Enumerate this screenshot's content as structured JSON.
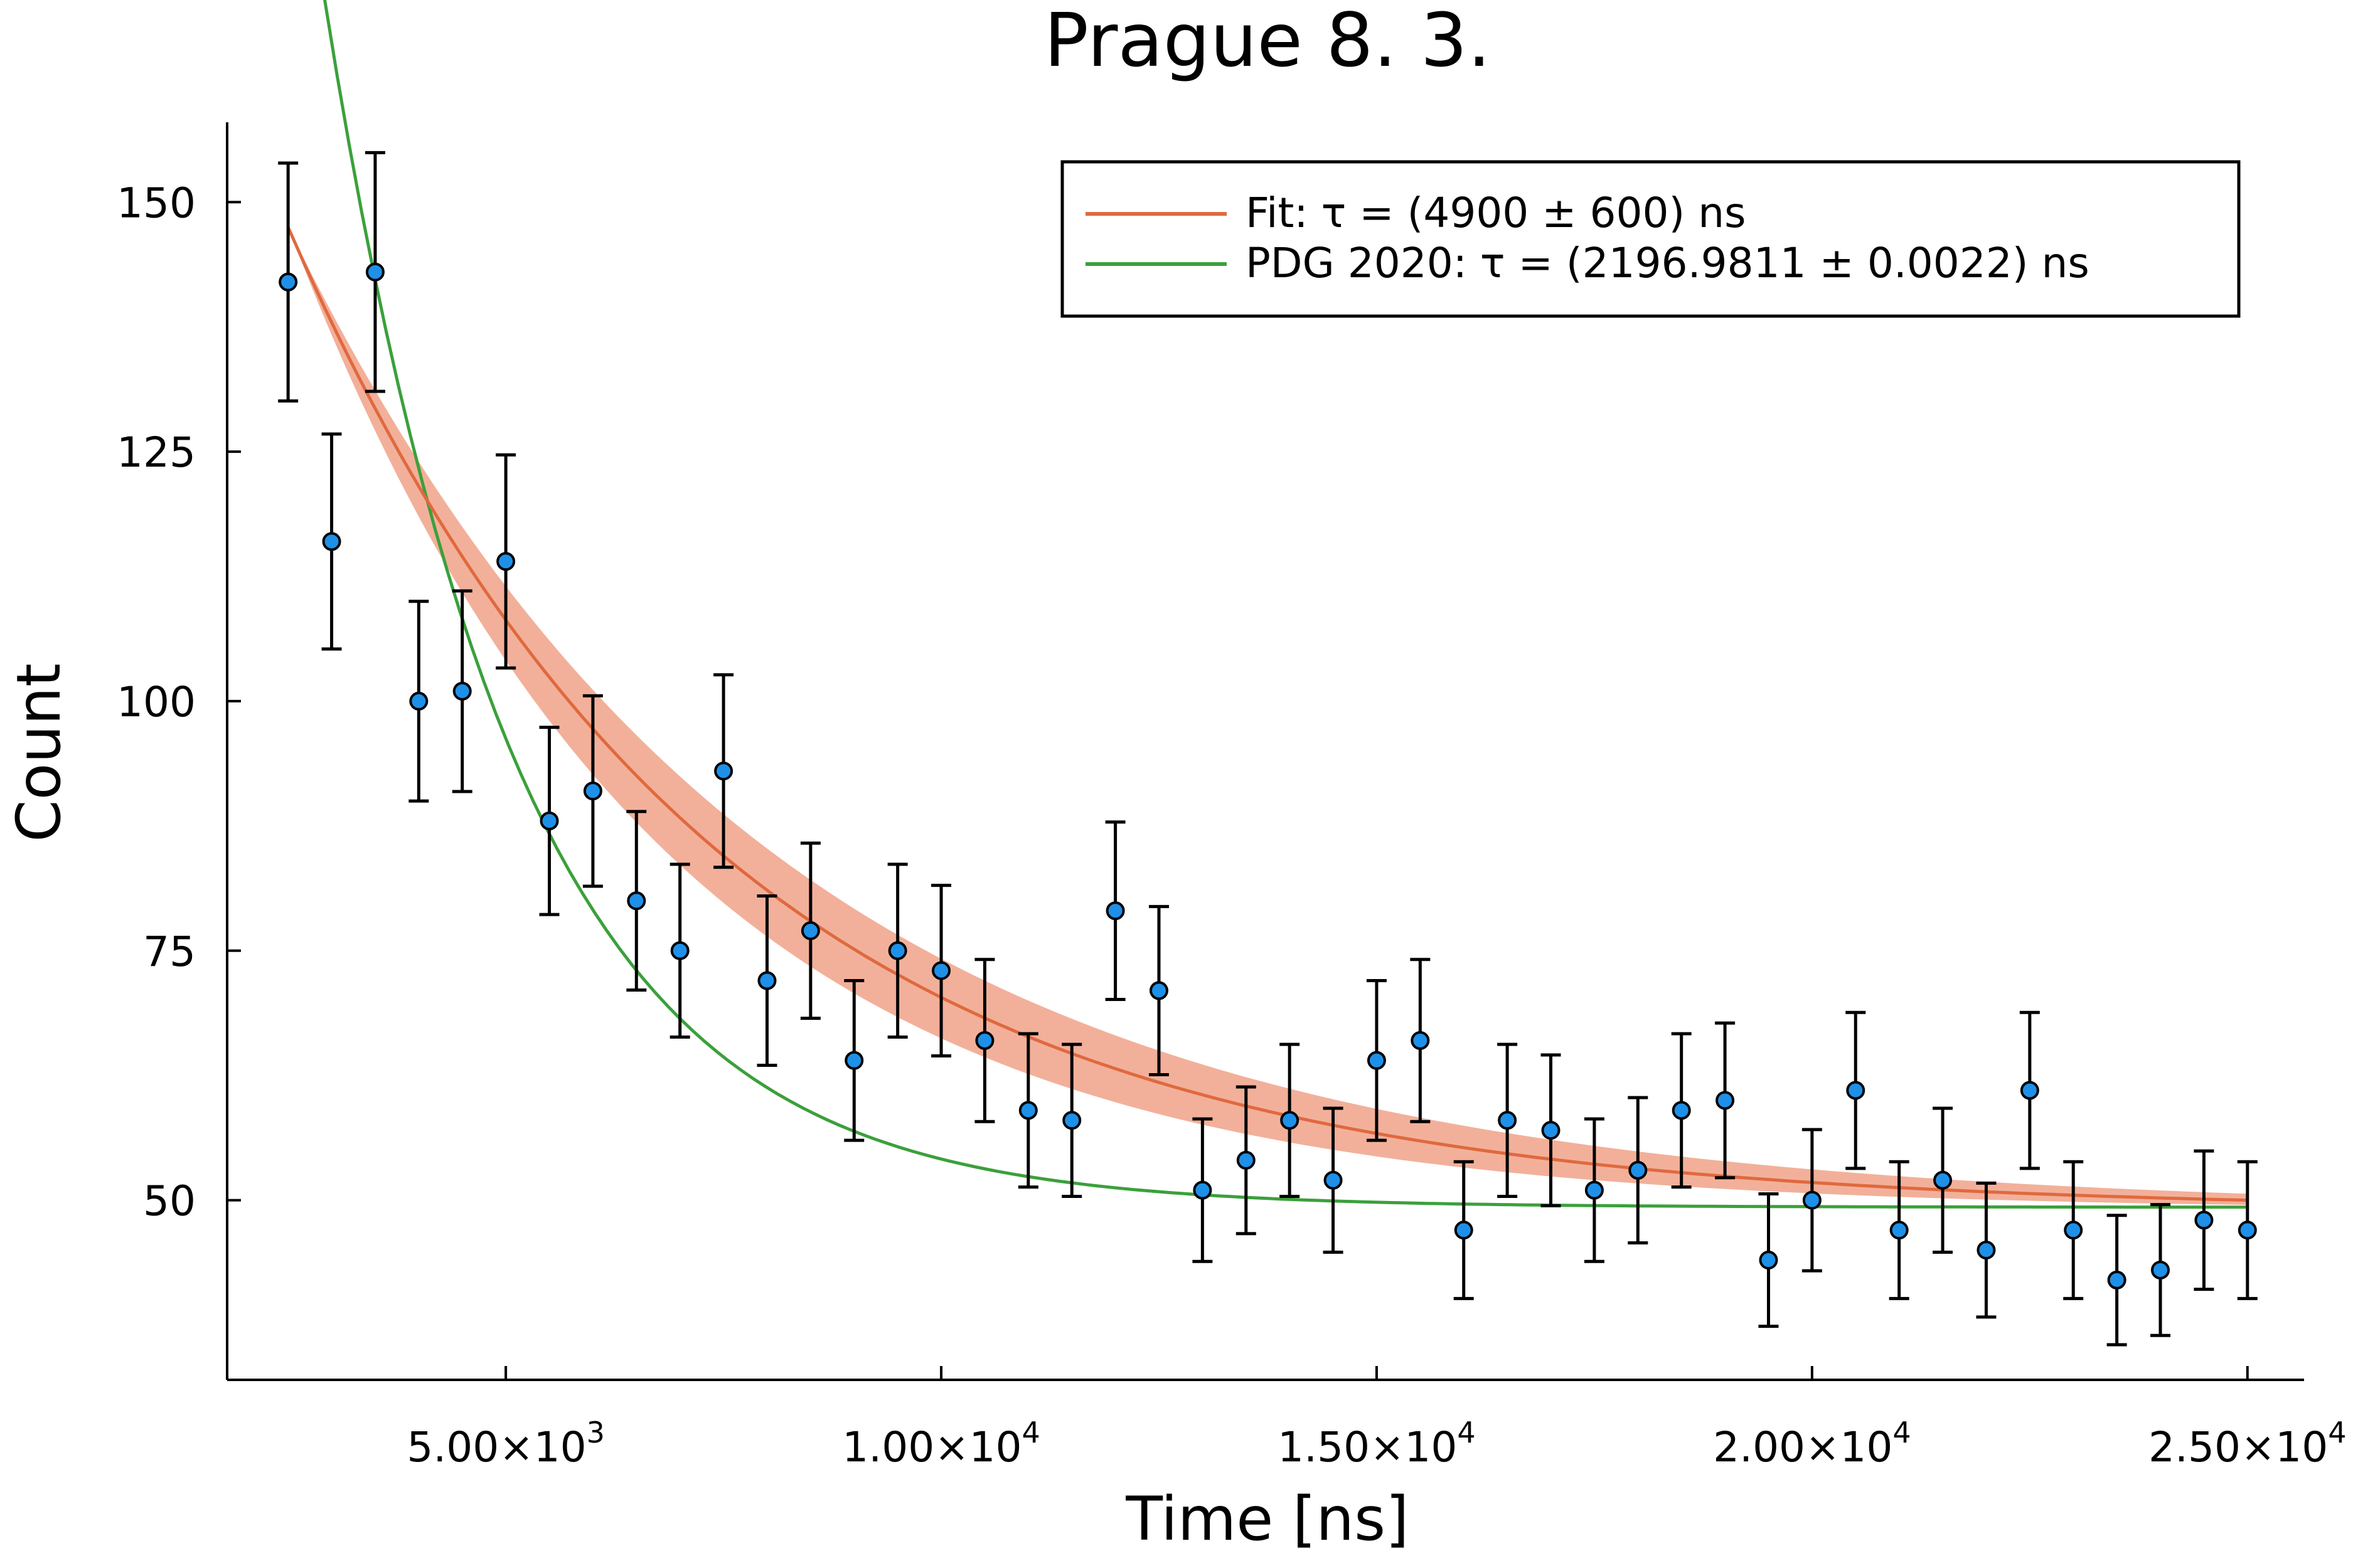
{
  "chart_data": {
    "type": "scatter",
    "title": "Prague 8. 3.",
    "xlabel": "Time [ns]",
    "ylabel": "Count",
    "xlim": [
      1800,
      25650
    ],
    "ylim": [
      32,
      158
    ],
    "grid": false,
    "legend_position": "top-right",
    "x_ticks": [
      {
        "value": 5000,
        "mantissa": "5.00×10",
        "exp": "3"
      },
      {
        "value": 10000,
        "mantissa": "1.00×10",
        "exp": "4"
      },
      {
        "value": 15000,
        "mantissa": "1.50×10",
        "exp": "4"
      },
      {
        "value": 20000,
        "mantissa": "2.00×10",
        "exp": "4"
      },
      {
        "value": 25000,
        "mantissa": "2.50×10",
        "exp": "4"
      }
    ],
    "y_ticks": [
      {
        "value": 50,
        "label": "50"
      },
      {
        "value": 75,
        "label": "75"
      },
      {
        "value": 100,
        "label": "100"
      },
      {
        "value": 125,
        "label": "125"
      },
      {
        "value": 150,
        "label": "150"
      }
    ],
    "series": [
      {
        "name": "",
        "kind": "points_with_errorbars",
        "color": "#1e90e8",
        "x": [
          2500,
          3000,
          3500,
          4000,
          4500,
          5000,
          5500,
          6000,
          6500,
          7000,
          7500,
          8000,
          8500,
          9000,
          9500,
          10000,
          10500,
          11000,
          11500,
          12000,
          12500,
          13000,
          13500,
          14000,
          14500,
          15000,
          15500,
          16000,
          16500,
          17000,
          17500,
          18000,
          18500,
          19000,
          19500,
          20000,
          20500,
          21000,
          21500,
          22000,
          22500,
          23000,
          23500,
          24000,
          24500,
          25000
        ],
        "y": [
          142,
          116,
          143,
          100,
          101,
          114,
          88,
          91,
          80,
          75,
          93,
          72,
          77,
          64,
          75,
          73,
          66,
          59,
          58,
          79,
          71,
          51,
          54,
          58,
          52,
          64,
          66,
          47,
          58,
          57,
          51,
          53,
          59,
          60,
          44,
          50,
          61,
          47,
          52,
          45,
          61,
          47,
          42,
          43,
          48,
          47
        ]
      },
      {
        "name": "Fit: τ = (4900 ± 600) ns",
        "kind": "line_with_band",
        "color": "#e0693e",
        "band_color": "#f2b09a",
        "model": {
          "amplitude": 98.5,
          "tau": 4900,
          "tau_band": [
            4300,
            5500
          ],
          "offset": 49
        }
      },
      {
        "name": "PDG 2020: τ = (2196.9811 ± 0.0022) ns",
        "kind": "line",
        "color": "#3ba03b",
        "model": {
          "amplitude": 146.5,
          "tau": 2196.9811,
          "offset": 49.3
        }
      }
    ]
  }
}
